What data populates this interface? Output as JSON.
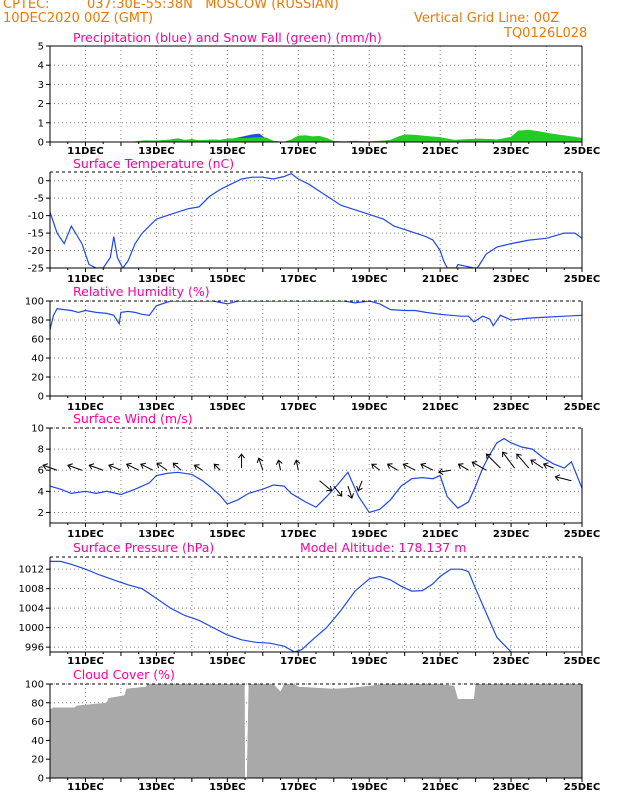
{
  "header": {
    "source": "CPTEC:",
    "location": "037:30E-55:38N   MOSCOW (RUSSIAN)",
    "run": "10DEC2020 00Z (GMT)",
    "grid_note": "Vertical Grid Line: 00Z",
    "code": "TQ0126L028"
  },
  "colors": {
    "header": "#f07800",
    "title": "#ff00a0",
    "line": "#1f48e8",
    "snow": "#22cc22",
    "rain": "#1f48e8",
    "cloud": "#a9a9a9"
  },
  "x_ticks": [
    "11DEC",
    "13DEC",
    "15DEC",
    "17DEC",
    "19DEC",
    "21DEC",
    "23DEC",
    "25DEC"
  ],
  "chart_data": [
    {
      "id": "precip",
      "type": "area",
      "title": "Precipitation (blue) and Snow Fall (green) (mm/h)",
      "ylim": [
        0,
        5
      ],
      "yticks": [
        "0",
        "1",
        "2",
        "3",
        "4",
        "5"
      ],
      "grid": true,
      "x": [
        12.3,
        12.7,
        13.0,
        13.4,
        13.6,
        13.8,
        14.0,
        14.2,
        14.4,
        14.6,
        14.8,
        15.0,
        15.2,
        15.5,
        15.7,
        15.9,
        16.1,
        16.3,
        16.6,
        16.8,
        17.0,
        17.2,
        17.4,
        17.6,
        17.8,
        18.0,
        18.3,
        18.6,
        19.0,
        19.4,
        19.6,
        19.8,
        20.0,
        20.3,
        20.6,
        21.0,
        21.4,
        21.8,
        22.1,
        22.4,
        22.6,
        22.8,
        23.0,
        23.2,
        23.5,
        23.8,
        24.1,
        24.4,
        24.7,
        25.0
      ],
      "series": [
        {
          "name": "Precipitation",
          "values": [
            0,
            0,
            0,
            0,
            0,
            0,
            0,
            0,
            0,
            0,
            0,
            0,
            0.18,
            0.3,
            0.38,
            0.42,
            0.15,
            0,
            0,
            0,
            0,
            0,
            0,
            0,
            0,
            0,
            0,
            0,
            0,
            0,
            0,
            0,
            0,
            0,
            0,
            0,
            0,
            0,
            0,
            0,
            0,
            0,
            0,
            0,
            0,
            0,
            0,
            0,
            0,
            0
          ]
        },
        {
          "name": "Snow Fall",
          "values": [
            0,
            0.08,
            0.06,
            0.12,
            0.18,
            0.1,
            0.14,
            0.08,
            0.1,
            0.12,
            0.1,
            0.16,
            0.18,
            0.2,
            0.22,
            0.24,
            0.22,
            0.05,
            0,
            0.12,
            0.32,
            0.34,
            0.28,
            0.3,
            0.2,
            0.04,
            0.02,
            0.05,
            0.02,
            0.06,
            0.1,
            0.26,
            0.38,
            0.36,
            0.3,
            0.24,
            0.1,
            0.14,
            0.16,
            0.14,
            0.12,
            0.18,
            0.26,
            0.58,
            0.62,
            0.54,
            0.44,
            0.36,
            0.28,
            0.2
          ]
        }
      ]
    },
    {
      "id": "temp",
      "type": "line",
      "title": "Surface Temperature (nC)",
      "ylim": [
        -25,
        2.5
      ],
      "yticks": [
        "0",
        "-5",
        "-10",
        "-15",
        "-20",
        "-25"
      ],
      "grid": true,
      "x": [
        10.0,
        10.2,
        10.4,
        10.6,
        10.9,
        11.1,
        11.3,
        11.5,
        11.7,
        11.8,
        11.9,
        12.05,
        12.2,
        12.4,
        12.6,
        12.8,
        13.0,
        13.3,
        13.6,
        13.9,
        14.2,
        14.5,
        14.8,
        15.1,
        15.4,
        15.7,
        16.0,
        16.3,
        16.6,
        16.8,
        17.0,
        17.3,
        17.6,
        17.9,
        18.2,
        18.5,
        18.8,
        19.1,
        19.4,
        19.7,
        20.0,
        20.3,
        20.6,
        20.8,
        21.0,
        21.1,
        21.2,
        21.45,
        21.5,
        21.95,
        22.05,
        22.3,
        22.6,
        23.0,
        23.5,
        24.0,
        24.5,
        24.8,
        25.0
      ],
      "series": [
        {
          "name": "Surface Temperature",
          "values": [
            -9,
            -15,
            -18,
            -13,
            -18,
            -24,
            -25,
            -25,
            -22,
            -16,
            -22,
            -25,
            -23,
            -18,
            -15,
            -13,
            -11,
            -10,
            -9,
            -8,
            -7.5,
            -4.5,
            -2.5,
            -1,
            0.5,
            1,
            1,
            0.5,
            1.2,
            2,
            0.5,
            -1,
            -3,
            -5,
            -7,
            -8,
            -9,
            -10,
            -11,
            -13,
            -14,
            -15,
            -16,
            -17,
            -20,
            -23,
            -25,
            -25,
            -24,
            -25,
            -25,
            -21,
            -19,
            -18,
            -17,
            -16.5,
            -15,
            -15,
            -16.5
          ]
        }
      ]
    },
    {
      "id": "rh",
      "type": "line",
      "title": "Relative Humidity (%)",
      "ylim": [
        0,
        100
      ],
      "yticks": [
        "0",
        "20",
        "40",
        "60",
        "80",
        "100"
      ],
      "grid": true,
      "x": [
        10.0,
        10.1,
        10.2,
        10.4,
        10.6,
        10.8,
        11.0,
        11.3,
        11.6,
        11.8,
        11.95,
        12.0,
        12.2,
        12.4,
        12.6,
        12.8,
        13.0,
        13.4,
        14.0,
        14.6,
        15.0,
        15.3,
        15.6,
        16.0,
        16.5,
        17.0,
        17.5,
        18.0,
        18.3,
        18.6,
        19.0,
        19.3,
        19.6,
        20.0,
        20.3,
        20.6,
        21.0,
        21.3,
        21.6,
        21.8,
        21.95,
        22.2,
        22.4,
        22.5,
        22.7,
        23.0,
        23.5,
        24.0,
        24.5,
        25.0
      ],
      "series": [
        {
          "name": "Relative Humidity",
          "values": [
            70,
            85,
            92,
            91,
            90,
            88,
            90,
            88,
            87,
            85,
            76,
            88,
            89,
            88,
            86,
            85,
            95,
            100,
            100,
            100,
            97,
            100,
            100,
            100,
            100,
            100,
            100,
            100,
            100,
            98,
            100,
            97,
            91,
            90,
            90,
            88,
            86,
            85,
            84,
            84,
            78,
            84,
            81,
            74,
            85,
            80,
            82,
            83,
            84,
            85
          ]
        }
      ]
    },
    {
      "id": "wind",
      "type": "line",
      "title": "Surface Wind (m/s)",
      "ylim": [
        1,
        10
      ],
      "yticks": [
        "2",
        "4",
        "6",
        "8",
        "10"
      ],
      "grid": true,
      "x": [
        10.0,
        10.3,
        10.6,
        11.0,
        11.3,
        11.6,
        12.0,
        12.4,
        12.8,
        13.0,
        13.3,
        13.6,
        14.0,
        14.3,
        14.6,
        14.8,
        15.0,
        15.3,
        15.6,
        16.0,
        16.3,
        16.6,
        16.8,
        17.0,
        17.2,
        17.5,
        17.8,
        18.1,
        18.4,
        18.7,
        19.0,
        19.3,
        19.6,
        19.9,
        20.2,
        20.5,
        20.8,
        21.0,
        21.2,
        21.5,
        21.8,
        22.0,
        22.2,
        22.4,
        22.6,
        22.8,
        23.0,
        23.3,
        23.6,
        23.9,
        24.2,
        24.5,
        24.7,
        25.0
      ],
      "series": [
        {
          "name": "Surface Wind",
          "values": [
            4.5,
            4.2,
            3.8,
            4,
            3.8,
            4,
            3.7,
            4.2,
            4.8,
            5.5,
            5.7,
            5.8,
            5.6,
            5,
            4.2,
            3.6,
            2.8,
            3.2,
            3.8,
            4.2,
            4.6,
            4.5,
            3.8,
            3.4,
            3,
            2.5,
            3.5,
            4.6,
            5.8,
            3.5,
            2,
            2.3,
            3.2,
            4.5,
            5.2,
            5.3,
            5.2,
            5.5,
            3.5,
            2.4,
            3,
            4.5,
            6.2,
            7.5,
            8.6,
            9,
            8.6,
            8.2,
            8,
            7.2,
            6.6,
            6.2,
            6.8,
            4.3
          ]
        }
      ]
    },
    {
      "id": "pressure",
      "type": "line",
      "title": "Surface Pressure (hPa)",
      "model_altitude": "Model Altitude: 178.137 m",
      "ylim": [
        995,
        1014.5
      ],
      "yticks": [
        "996",
        "1000",
        "1004",
        "1008",
        "1012"
      ],
      "grid": true,
      "x": [
        10.0,
        10.3,
        10.6,
        11.0,
        11.4,
        11.8,
        12.2,
        12.6,
        13.0,
        13.4,
        13.8,
        14.2,
        14.6,
        15.0,
        15.4,
        15.8,
        16.2,
        16.6,
        16.9,
        17.1,
        17.4,
        17.8,
        18.2,
        18.6,
        19.0,
        19.3,
        19.6,
        19.9,
        20.2,
        20.5,
        20.8,
        21.0,
        21.3,
        21.6,
        21.8,
        22.0,
        22.3,
        22.6,
        23.0
      ],
      "series": [
        {
          "name": "Surface Pressure",
          "values": [
            1013.6,
            1013.6,
            1013,
            1012,
            1010.8,
            1009.8,
            1008.8,
            1008,
            1006,
            1004,
            1002.5,
            1001.5,
            1000,
            998.5,
            997.5,
            997,
            996.8,
            996.2,
            995,
            995.5,
            997.5,
            1000,
            1003.5,
            1007.5,
            1010,
            1010.5,
            1009.8,
            1008.5,
            1007.5,
            1007.6,
            1009,
            1010.5,
            1012,
            1012,
            1011.5,
            1008,
            1003,
            998,
            995
          ]
        }
      ]
    },
    {
      "id": "cloud",
      "type": "area",
      "title": "Cloud Cover (%)",
      "ylim": [
        0,
        100
      ],
      "yticks": [
        "0",
        "20",
        "40",
        "60",
        "80",
        "100"
      ],
      "grid": true,
      "x": [
        10.0,
        10.1,
        10.7,
        10.75,
        11.6,
        11.65,
        12.1,
        12.15,
        12.7,
        12.75,
        13.5,
        14.0,
        14.5,
        15.0,
        15.49,
        15.5,
        15.55,
        15.6,
        16.0,
        16.3,
        16.5,
        16.6,
        16.9,
        17.0,
        17.5,
        18.0,
        18.5,
        19.0,
        19.4,
        19.6,
        20.0,
        20.5,
        21.0,
        21.4,
        21.5,
        21.95,
        22.0,
        22.5,
        23.0,
        24.0,
        25.0
      ],
      "series": [
        {
          "name": "Cloud Cover",
          "values": [
            73,
            75,
            75,
            77,
            80,
            85,
            88,
            95,
            97,
            100,
            100,
            100,
            100,
            100,
            100,
            0,
            0,
            100,
            100,
            100,
            92,
            100,
            100,
            97,
            96,
            95,
            96,
            98,
            100,
            100,
            100,
            100,
            100,
            98,
            84,
            84,
            100,
            100,
            100,
            100,
            100
          ]
        }
      ]
    }
  ]
}
